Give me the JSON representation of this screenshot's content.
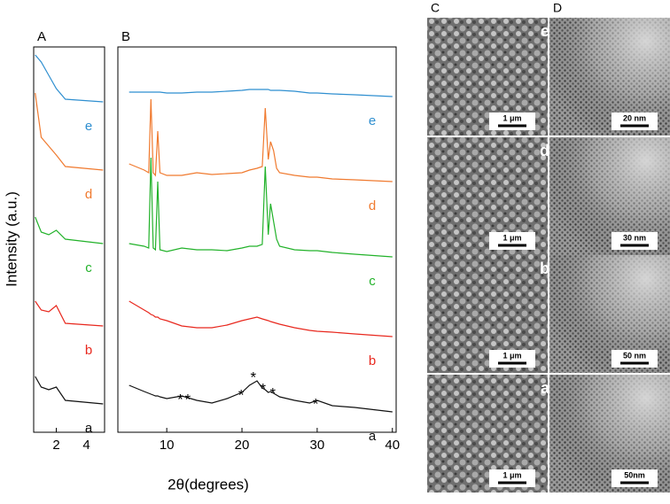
{
  "chart_data": [
    {
      "type": "line",
      "title": "A",
      "ylabel": "Intensity (a.u.)",
      "x": [
        0.6,
        1.0,
        1.5,
        2.0,
        2.6,
        5.1
      ],
      "xlim": [
        0.5,
        5.2
      ],
      "xticks": [
        2,
        4
      ],
      "ylim": [
        0,
        435
      ],
      "series": [
        {
          "name": "e",
          "color": "#2f8fd0",
          "values": [
            426,
            418,
            403,
            388,
            376,
            373
          ]
        },
        {
          "name": "d",
          "color": "#f07a2f",
          "values": [
            383,
            333,
            323,
            313,
            300,
            296
          ]
        },
        {
          "name": "c",
          "color": "#22b22a",
          "values": [
            243,
            226,
            223,
            228,
            218,
            213
          ]
        },
        {
          "name": "b",
          "color": "#e8281e",
          "values": [
            148,
            138,
            136,
            143,
            123,
            120
          ]
        },
        {
          "name": "a",
          "color": "#111111",
          "values": [
            63,
            51,
            48,
            51,
            36,
            32
          ]
        }
      ]
    },
    {
      "type": "line",
      "title": "B",
      "xlabel": "2θ(degrees)",
      "x": [
        5,
        7,
        7.6,
        7.9,
        8.2,
        8.5,
        8.8,
        9.1,
        10,
        12,
        14,
        16,
        18,
        20,
        21,
        22,
        22.7,
        23.1,
        23.5,
        23.8,
        24.2,
        24.6,
        25,
        27,
        29,
        30,
        32,
        35,
        40
      ],
      "xlim": [
        3.5,
        40.5
      ],
      "xticks": [
        10,
        20,
        30,
        40
      ],
      "ylim": [
        0,
        435
      ],
      "series": [
        {
          "name": "e",
          "color": "#2f8fd0",
          "values": [
            384,
            384,
            384,
            384,
            384,
            384,
            384,
            384,
            383,
            383,
            384,
            384,
            385,
            386,
            387,
            387,
            387,
            387,
            387,
            386,
            386,
            386,
            386,
            385,
            383,
            383,
            382,
            381,
            379
          ]
        },
        {
          "name": "d",
          "color": "#f07a2f",
          "values": [
            303,
            296,
            293,
            376,
            293,
            290,
            340,
            293,
            290,
            290,
            293,
            291,
            292,
            293,
            296,
            298,
            300,
            366,
            308,
            328,
            318,
            298,
            293,
            290,
            288,
            288,
            286,
            285,
            283
          ]
        },
        {
          "name": "c",
          "color": "#22b22a",
          "values": [
            213,
            210,
            208,
            310,
            208,
            206,
            283,
            206,
            204,
            208,
            206,
            206,
            205,
            208,
            210,
            210,
            212,
            300,
            223,
            258,
            238,
            218,
            210,
            206,
            205,
            205,
            203,
            201,
            198
          ]
        },
        {
          "name": "b",
          "color": "#e8281e",
          "values": [
            148,
            138,
            135,
            133,
            132,
            130,
            130,
            128,
            126,
            120,
            118,
            118,
            121,
            126,
            128,
            130,
            128,
            127,
            126,
            125,
            124,
            123,
            122,
            118,
            115,
            114,
            113,
            111,
            108
          ]
        },
        {
          "name": "a",
          "color": "#111111",
          "values": [
            53,
            46,
            44,
            43,
            42,
            41,
            41,
            40,
            38,
            41,
            36,
            33,
            38,
            45,
            53,
            58,
            50,
            48,
            45,
            46,
            44,
            42,
            40,
            36,
            33,
            36,
            30,
            28,
            23
          ]
        }
      ],
      "annotations": [
        {
          "text": "*",
          "x": 11.8,
          "y": 38
        },
        {
          "text": "*",
          "x": 12.8,
          "y": 38
        },
        {
          "text": "*",
          "x": 19.9,
          "y": 43
        },
        {
          "text": "*",
          "x": 21.5,
          "y": 63
        },
        {
          "text": "*",
          "x": 22.8,
          "y": 50
        },
        {
          "text": "*",
          "x": 24.1,
          "y": 45
        },
        {
          "text": "*",
          "x": 29.8,
          "y": 33
        }
      ]
    }
  ],
  "micrographs": {
    "columns": [
      "C",
      "D"
    ],
    "rows": [
      {
        "label": "e",
        "scale_bars": [
          "1 μm",
          "20 nm"
        ]
      },
      {
        "label": "d",
        "scale_bars": [
          "1 μm",
          "30 nm"
        ]
      },
      {
        "label": "b",
        "scale_bars": [
          "1 μm",
          "50 nm"
        ]
      },
      {
        "label": "a",
        "scale_bars": [
          "1 μm",
          "50nm"
        ]
      }
    ]
  }
}
